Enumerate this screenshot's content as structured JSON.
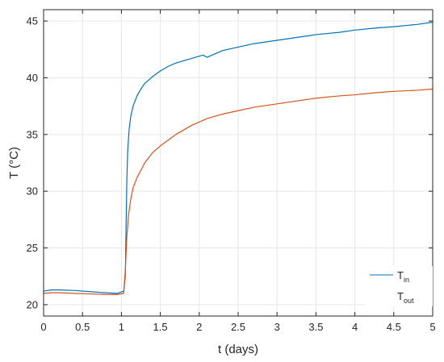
{
  "chart_data": {
    "type": "line",
    "xlabel": "t (days)",
    "ylabel": "T (°C)",
    "xlim": [
      0,
      5
    ],
    "ylim": [
      19,
      46
    ],
    "xticks": [
      "0",
      "0.5",
      "1",
      "1.5",
      "2",
      "2.5",
      "3",
      "3.5",
      "4",
      "4.5",
      "5"
    ],
    "yticks": [
      "20",
      "25",
      "30",
      "35",
      "40",
      "45"
    ],
    "grid": true,
    "legend_position": "bottom-right",
    "series": [
      {
        "name_base": "T",
        "name_sub": "in",
        "color": "#0072BD",
        "x": [
          0,
          0.1,
          0.2,
          0.4,
          0.6,
          0.8,
          0.95,
          1.03,
          1.05,
          1.06,
          1.07,
          1.08,
          1.1,
          1.12,
          1.15,
          1.2,
          1.25,
          1.3,
          1.4,
          1.5,
          1.6,
          1.7,
          1.8,
          1.9,
          2.0,
          2.05,
          2.1,
          2.2,
          2.3,
          2.5,
          2.7,
          3.0,
          3.3,
          3.5,
          3.8,
          4.0,
          4.3,
          4.5,
          4.8,
          5.0
        ],
        "y": [
          21.2,
          21.3,
          21.3,
          21.25,
          21.15,
          21.05,
          21.0,
          21.2,
          22.5,
          27.0,
          31.0,
          33.5,
          35.5,
          36.6,
          37.5,
          38.4,
          39.0,
          39.5,
          40.1,
          40.6,
          41.0,
          41.3,
          41.5,
          41.7,
          41.9,
          42.0,
          41.8,
          42.1,
          42.4,
          42.7,
          43.0,
          43.3,
          43.6,
          43.8,
          44.0,
          44.2,
          44.4,
          44.5,
          44.7,
          44.9
        ]
      },
      {
        "name_base": "T",
        "name_sub": "out",
        "color": "#D95319",
        "x": [
          0,
          0.1,
          0.2,
          0.4,
          0.6,
          0.8,
          0.95,
          1.03,
          1.05,
          1.07,
          1.09,
          1.12,
          1.15,
          1.2,
          1.3,
          1.4,
          1.5,
          1.6,
          1.7,
          1.8,
          1.9,
          2.0,
          2.1,
          2.3,
          2.5,
          2.7,
          3.0,
          3.3,
          3.5,
          3.8,
          4.0,
          4.3,
          4.5,
          4.8,
          5.0
        ],
        "y": [
          21.0,
          21.05,
          21.05,
          21.0,
          20.95,
          20.9,
          20.9,
          21.0,
          23.0,
          26.0,
          27.8,
          29.3,
          30.3,
          31.2,
          32.5,
          33.4,
          34.0,
          34.5,
          35.0,
          35.4,
          35.8,
          36.1,
          36.4,
          36.8,
          37.1,
          37.4,
          37.7,
          38.0,
          38.2,
          38.4,
          38.5,
          38.7,
          38.8,
          38.9,
          39.0
        ]
      }
    ]
  }
}
